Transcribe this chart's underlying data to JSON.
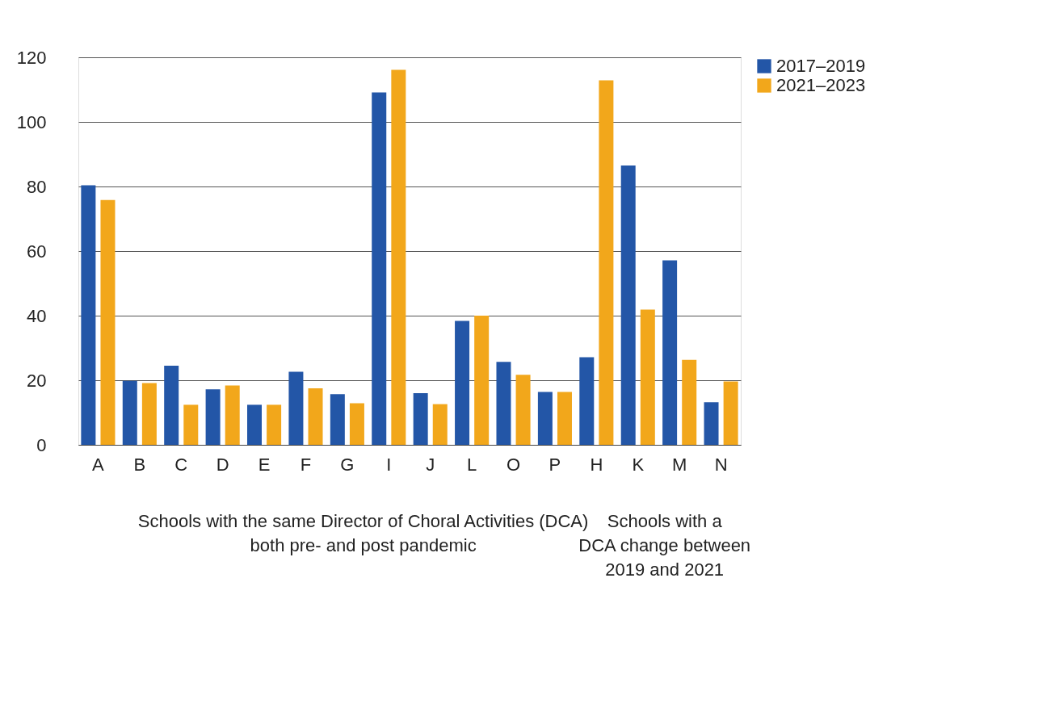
{
  "chart_data": {
    "type": "bar",
    "categories": [
      "A",
      "B",
      "C",
      "D",
      "E",
      "F",
      "G",
      "I",
      "J",
      "L",
      "O",
      "P",
      "H",
      "K",
      "M",
      "N"
    ],
    "series": [
      {
        "name": "2017–2019",
        "color": "#2356a7",
        "values": [
          80.4,
          19.8,
          24.5,
          17.2,
          12.4,
          22.6,
          15.7,
          109.1,
          16.0,
          38.4,
          25.7,
          16.4,
          27.1,
          86.5,
          57.1,
          13.2
        ]
      },
      {
        "name": "2021–2023",
        "color": "#f2a71b",
        "values": [
          75.8,
          19.1,
          12.4,
          18.4,
          12.4,
          17.5,
          12.9,
          116.1,
          12.6,
          40.0,
          21.7,
          16.4,
          112.9,
          41.9,
          26.3,
          19.6
        ]
      }
    ],
    "ylim": [
      0,
      120
    ],
    "yticks": [
      0,
      20,
      40,
      60,
      80,
      100,
      120
    ],
    "grid": "y",
    "legend": "right",
    "annotations": [
      "Schools with the same Director of Choral Activities (DCA)\nboth pre- and post pandemic",
      "Schools with a\nDCA change between\n2019 and 2021"
    ]
  }
}
